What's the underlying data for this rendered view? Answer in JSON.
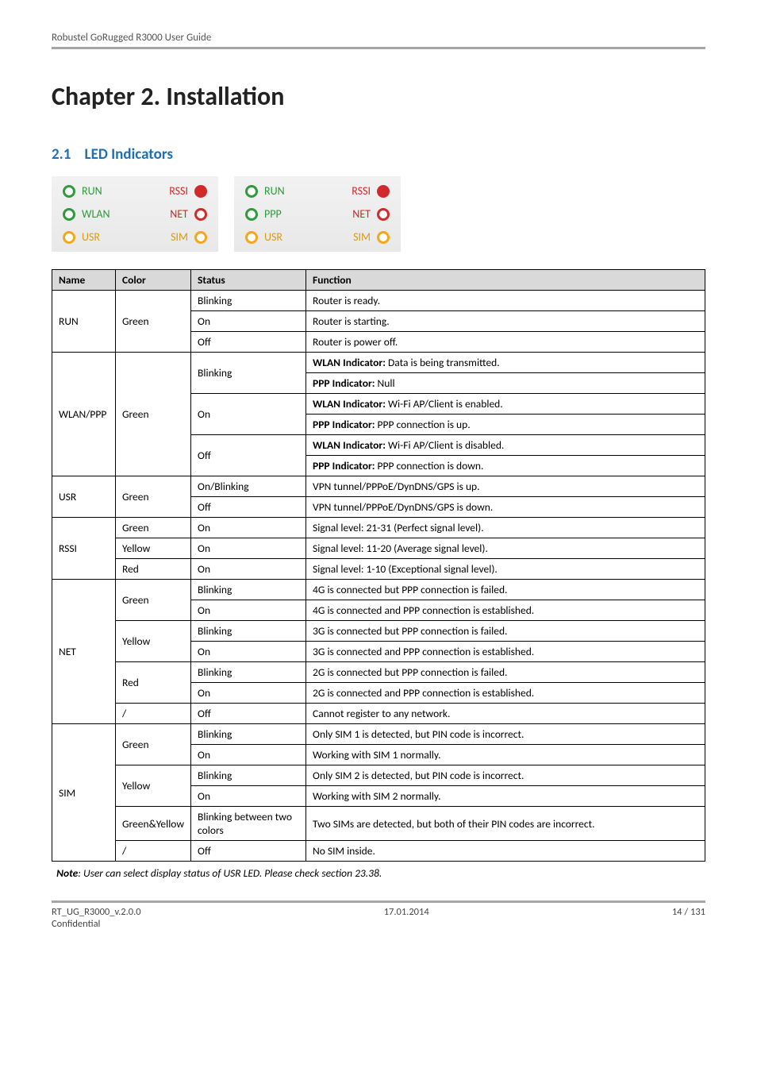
{
  "header": {
    "product_line": "Robustel GoRugged R3000 User Guide"
  },
  "chapter": {
    "title": "Chapter 2.  Installation"
  },
  "section": {
    "number": "2.1",
    "title": "LED Indicators"
  },
  "led_panels": {
    "left": [
      {
        "l_label": "RUN",
        "l_icon": "ring-green",
        "l_class": "label-run",
        "r_label": "RSSI",
        "r_icon": "dot-red",
        "r_class": "label-rssi"
      },
      {
        "l_label": "WLAN",
        "l_icon": "ring-green",
        "l_class": "label-wlan",
        "r_label": "NET",
        "r_icon": "ring-red",
        "r_class": "label-net"
      },
      {
        "l_label": "USR",
        "l_icon": "ring-yellow",
        "l_class": "label-usr",
        "r_label": "SIM",
        "r_icon": "ring-yellow",
        "r_class": "label-sim"
      }
    ],
    "right": [
      {
        "l_label": "RUN",
        "l_icon": "ring-green",
        "l_class": "label-run",
        "r_label": "RSSI",
        "r_icon": "dot-red",
        "r_class": "label-rssi"
      },
      {
        "l_label": "PPP",
        "l_icon": "ring-green",
        "l_class": "label-ppp",
        "r_label": "NET",
        "r_icon": "ring-red",
        "r_class": "label-net"
      },
      {
        "l_label": "USR",
        "l_icon": "ring-yellow",
        "l_class": "label-usr",
        "r_label": "SIM",
        "r_icon": "ring-yellow",
        "r_class": "label-sim"
      }
    ]
  },
  "table": {
    "headers": {
      "name": "Name",
      "color": "Color",
      "status": "Status",
      "function": "Function"
    },
    "groups": [
      {
        "name": "RUN",
        "name_rowspan": 3,
        "rows": [
          {
            "color": "Green",
            "color_rowspan": 3,
            "status": "Blinking",
            "function": "Router is ready."
          },
          {
            "status": "On",
            "function": "Router is starting."
          },
          {
            "status": "Off",
            "function": "Router is power off."
          }
        ]
      },
      {
        "name": "WLAN/PPP",
        "name_rowspan": 6,
        "rows": [
          {
            "color": "Green",
            "color_rowspan": 6,
            "status": "Blinking",
            "status_rowspan": 2,
            "function_html": "<b>WLAN Indicator:</b> Data is being transmitted."
          },
          {
            "function_html": "<b>PPP Indicator:</b> Null"
          },
          {
            "status": "On",
            "status_rowspan": 2,
            "function_html": "<b>WLAN Indicator:</b> Wi-Fi AP/Client is enabled."
          },
          {
            "function_html": "<b>PPP Indicator:</b> PPP connection is up."
          },
          {
            "status": "Off",
            "status_rowspan": 2,
            "function_html": "<b>WLAN Indicator:</b> Wi-Fi AP/Client is disabled."
          },
          {
            "function_html": "<b>PPP Indicator:</b> PPP connection is down."
          }
        ]
      },
      {
        "name": "USR",
        "name_rowspan": 2,
        "rows": [
          {
            "color": "Green",
            "color_rowspan": 2,
            "status": "On/Blinking",
            "function": "VPN tunnel/PPPoE/DynDNS/GPS is up."
          },
          {
            "status": "Off",
            "function": "VPN tunnel/PPPoE/DynDNS/GPS is down."
          }
        ]
      },
      {
        "name": "RSSI",
        "name_rowspan": 3,
        "rows": [
          {
            "color": "Green",
            "status": "On",
            "function": "Signal level: 21-31 (Perfect signal level)."
          },
          {
            "color": "Yellow",
            "status": "On",
            "function": "Signal level: 11-20 (Average signal level)."
          },
          {
            "color": "Red",
            "status": "On",
            "function": "Signal level: 1-10 (Exceptional signal level)."
          }
        ]
      },
      {
        "name": "NET",
        "name_rowspan": 7,
        "rows": [
          {
            "color": "Green",
            "color_rowspan": 2,
            "status": "Blinking",
            "function": "4G is connected but PPP connection is failed."
          },
          {
            "status": "On",
            "function": "4G is connected and PPP connection is established."
          },
          {
            "color": "Yellow",
            "color_rowspan": 2,
            "status": "Blinking",
            "function": "3G is connected but PPP connection is failed."
          },
          {
            "status": "On",
            "function": "3G is connected and PPP connection is established."
          },
          {
            "color": "Red",
            "color_rowspan": 2,
            "status": "Blinking",
            "function": "2G is connected but PPP connection is failed."
          },
          {
            "status": "On",
            "function": "2G is connected and PPP connection is established."
          },
          {
            "color": "/",
            "status": "Off",
            "function": "Cannot register to any network."
          }
        ]
      },
      {
        "name": "SIM",
        "name_rowspan": 6,
        "rows": [
          {
            "color": "Green",
            "color_rowspan": 2,
            "status": "Blinking",
            "function": "Only SIM 1 is detected, but PIN code is incorrect."
          },
          {
            "status": "On",
            "function": "Working with SIM 1 normally."
          },
          {
            "color": "Yellow",
            "color_rowspan": 2,
            "status": "Blinking",
            "function": "Only SIM 2 is detected, but PIN code is incorrect."
          },
          {
            "status": "On",
            "function": "Working with SIM 2 normally."
          },
          {
            "color": "Green&Yellow",
            "status": "Blinking between two colors",
            "function": "Two SIMs are detected, but both of their PIN codes are incorrect."
          },
          {
            "color": "/",
            "status": "Off",
            "function": "No SIM inside."
          }
        ]
      }
    ]
  },
  "note": {
    "label": "Note",
    "text": ": User can select display status of USR LED. Please check section 23.38."
  },
  "footer": {
    "left_line1": "RT_UG_R3000_v.2.0.0",
    "left_line2": "Confidential",
    "center": "17.01.2014",
    "right": "14 / 131"
  },
  "colors": {
    "header_rule": "#a6a6a6",
    "section_title": "#1f6fb5",
    "table_header_bg": "#d9d9d9",
    "green": "#2e9b3c",
    "yellow": "#f3a818",
    "red": "#d12a2a"
  }
}
